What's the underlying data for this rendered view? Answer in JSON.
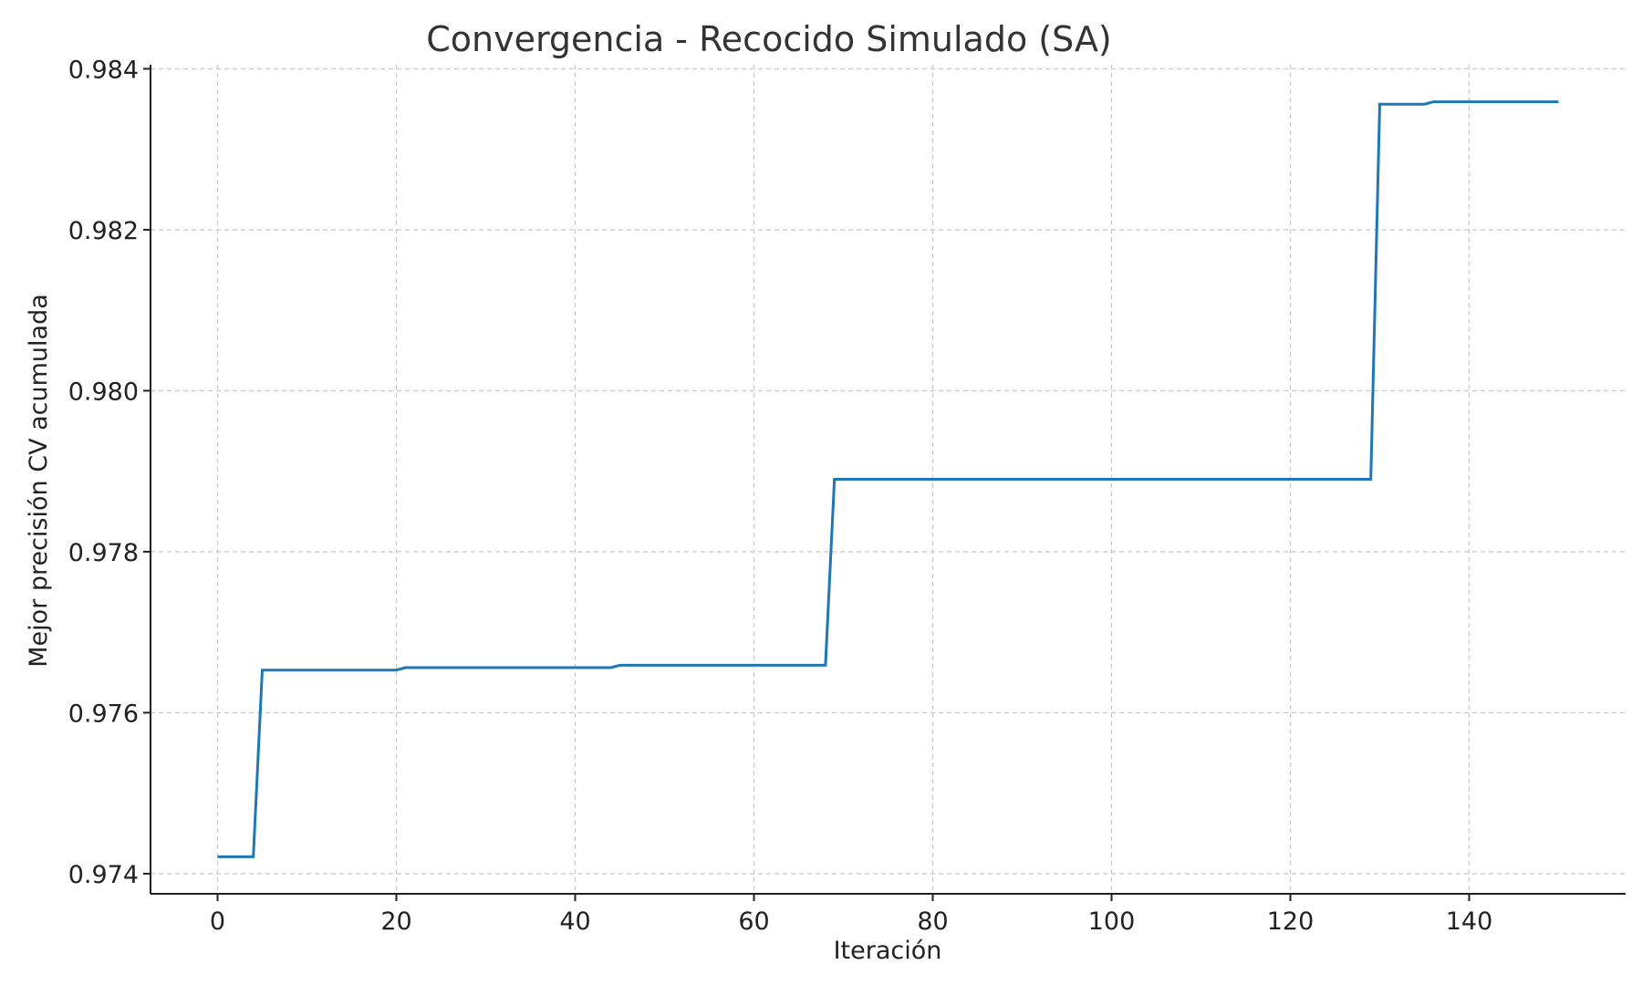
{
  "chart_data": {
    "type": "line",
    "title": "Convergencia - Recocido Simulado (SA)",
    "xlabel": "Iteración",
    "ylabel": "Mejor precisión CV acumulada",
    "xlim": [
      -7.5,
      157.5
    ],
    "ylim": [
      0.97375,
      0.98405
    ],
    "xticks": [
      0,
      20,
      40,
      60,
      80,
      100,
      120,
      140
    ],
    "xtick_labels": [
      "0",
      "20",
      "40",
      "60",
      "80",
      "100",
      "120",
      "140"
    ],
    "yticks": [
      0.974,
      0.976,
      0.978,
      0.98,
      0.982,
      0.984
    ],
    "ytick_labels": [
      "0.974",
      "0.976",
      "0.978",
      "0.980",
      "0.982",
      "0.984"
    ],
    "grid": true,
    "series": [
      {
        "color": "#1f77b4",
        "x": [
          0,
          4,
          5,
          20,
          21,
          44,
          45,
          68,
          69,
          129,
          130,
          135,
          136,
          150
        ],
        "y": [
          0.97421,
          0.97421,
          0.97653,
          0.97653,
          0.97656,
          0.97656,
          0.97659,
          0.97659,
          0.9789,
          0.9789,
          0.98356,
          0.98356,
          0.98359,
          0.98359
        ]
      }
    ]
  }
}
